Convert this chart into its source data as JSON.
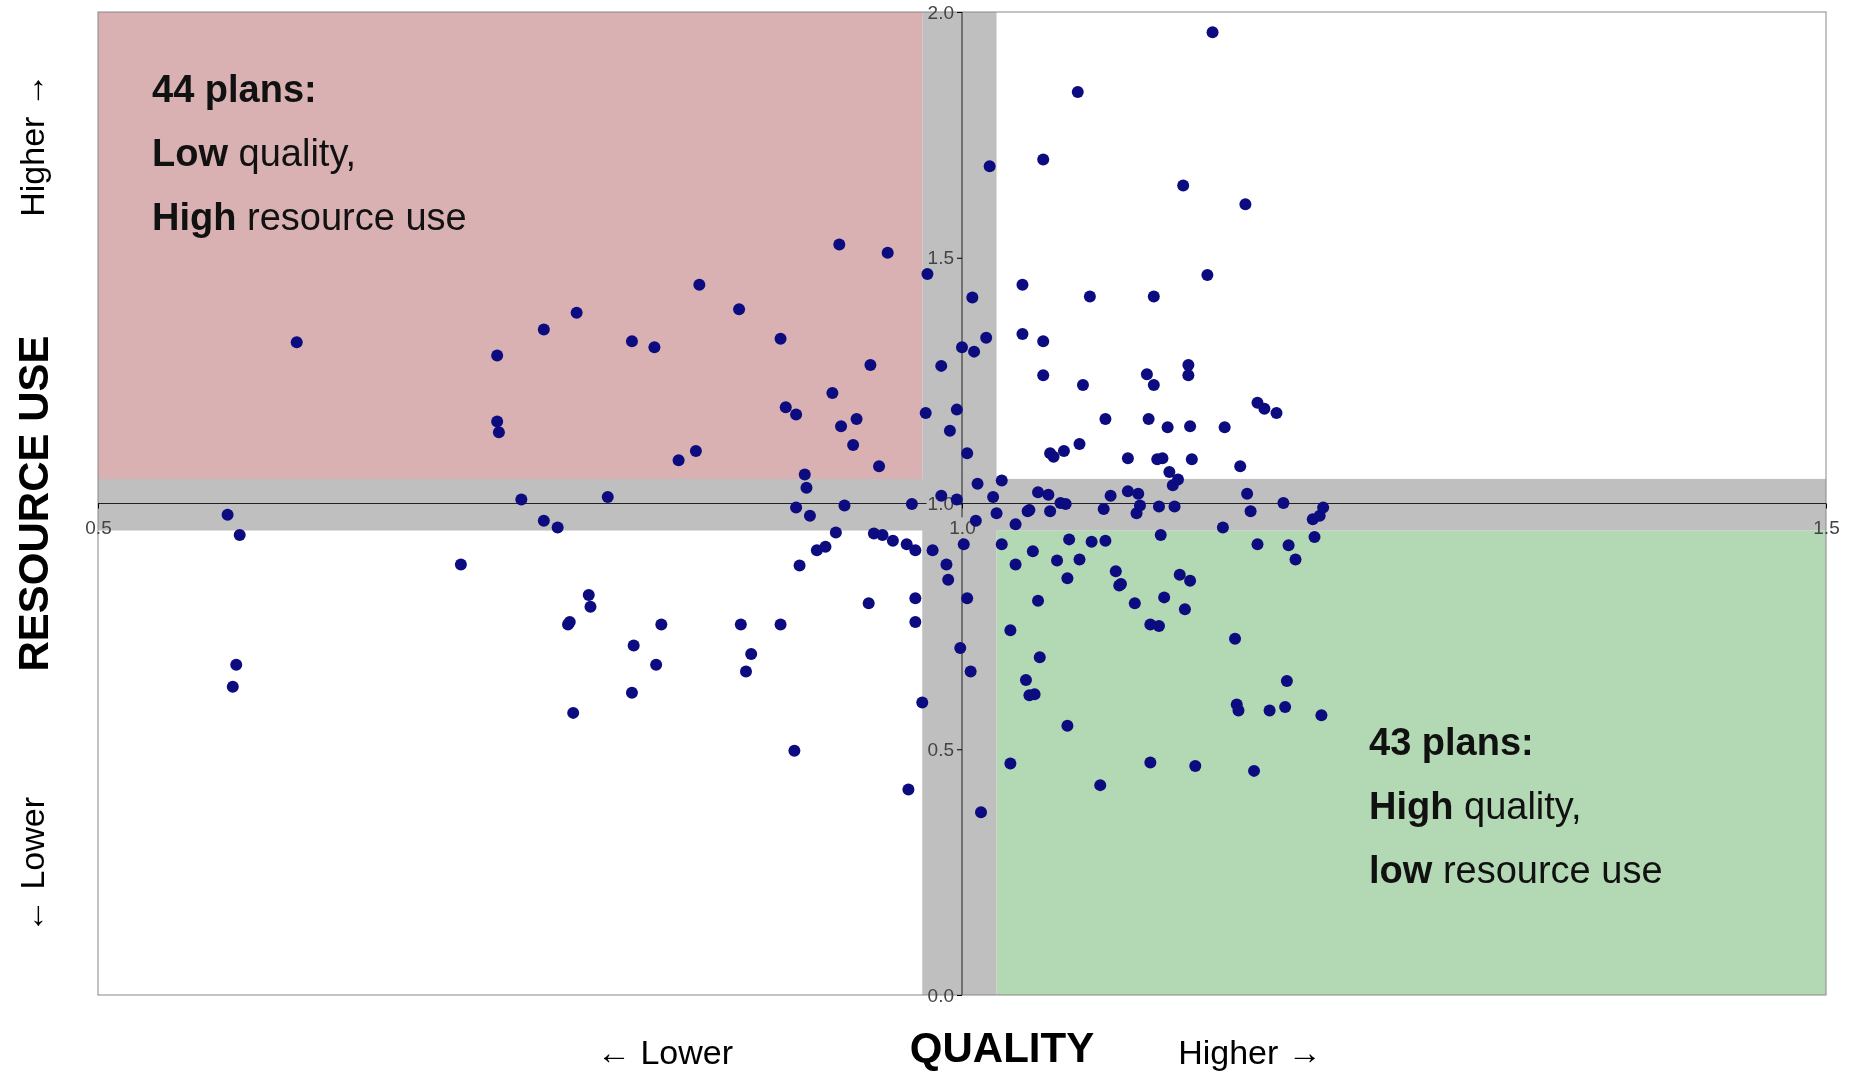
{
  "chart_data": {
    "type": "scatter",
    "xlabel": "QUALITY",
    "ylabel": "RESOURCE USE",
    "xlim": [
      0.5,
      1.5
    ],
    "ylim": [
      0,
      2
    ],
    "xticks": [
      {
        "value": 0.5,
        "label": "0.5"
      },
      {
        "value": 1,
        "label": "1.0"
      },
      {
        "value": 1.5,
        "label": "1.5"
      }
    ],
    "yticks": [
      {
        "value": 0,
        "label": "0.0"
      },
      {
        "value": 0.5,
        "label": "0.5"
      },
      {
        "value": 1,
        "label": "1.0"
      },
      {
        "value": 1.5,
        "label": "1.5"
      },
      {
        "value": 2,
        "label": "2.0"
      }
    ],
    "annotations": [
      "Higher →",
      "← Lower",
      "← Lower",
      "Higher →",
      "44 plans:\nLow quality,\nHigh resource use",
      "43 plans:\nHigh quality,\nlow resource use"
    ],
    "bands": [
      {
        "axis": "x",
        "from": 0.977,
        "to": 1.02,
        "color": "#bfbfbf"
      },
      {
        "axis": "y",
        "from": 0.945,
        "to": 1.05,
        "color": "#bfbfbf"
      }
    ],
    "series": [
      {
        "type": "area",
        "color": "#d9b1b3",
        "x": [
          0.5,
          0.977
        ],
        "values": [
          2,
          2
        ]
      },
      {
        "type": "area",
        "color": "#b2d9b3",
        "x": [
          1.02,
          1.5
        ],
        "values": [
          0.945,
          0.945
        ]
      },
      {
        "color": "#0c0c80",
        "marker": "circle",
        "x": [
          0.575,
          0.582,
          0.615,
          0.58,
          0.578,
          0.71,
          0.731,
          0.731,
          0.732,
          0.745,
          0.758,
          0.758,
          0.766,
          0.777,
          0.772,
          0.773,
          0.775,
          0.784,
          0.785,
          0.795,
          0.809,
          0.81,
          0.809,
          0.822,
          0.823,
          0.826,
          0.836,
          0.846,
          0.848,
          0.871,
          0.872,
          0.875,
          0.878,
          0.895,
          0.895,
          0.898,
          0.904,
          0.903,
          0.909,
          0.91,
          0.904,
          0.912,
          0.906,
          0.916,
          0.921,
          0.925,
          0.927,
          0.929,
          0.93,
          0.932,
          0.937,
          0.939,
          0.946,
          0.947,
          0.949,
          0.952,
          0.954,
          0.957,
          0.96,
          0.968,
          0.971,
          0.973,
          0.973,
          0.969,
          0.973,
          0.977,
          0.98,
          0.979,
          0.983,
          0.988,
          0.988,
          0.991,
          0.992,
          0.993,
          0.997,
          0.997,
          0.999,
          1.0,
          1.001,
          1.003,
          1.003,
          1.005,
          1.006,
          1.007,
          1.008,
          1.009,
          1.011,
          1.014,
          1.016,
          1.018,
          1.02,
          1.023,
          1.023,
          1.028,
          1.028,
          1.031,
          1.031,
          1.035,
          1.035,
          1.037,
          1.038,
          1.039,
          1.039,
          1.042,
          1.041,
          1.044,
          1.045,
          1.044,
          1.047,
          1.047,
          1.047,
          1.05,
          1.051,
          1.051,
          1.053,
          1.055,
          1.057,
          1.059,
          1.06,
          1.061,
          1.061,
          1.062,
          1.067,
          1.068,
          1.068,
          1.07,
          1.074,
          1.075,
          1.08,
          1.082,
          1.083,
          1.083,
          1.086,
          1.089,
          1.091,
          1.092,
          1.096,
          1.096,
          1.1,
          1.101,
          1.102,
          1.103,
          1.107,
          1.108,
          1.109,
          1.109,
          1.111,
          1.111,
          1.113,
          1.114,
          1.116,
          1.115,
          1.117,
          1.114,
          1.119,
          1.12,
          1.122,
          1.123,
          1.125,
          1.126,
          1.128,
          1.129,
          1.131,
          1.131,
          1.132,
          1.132,
          1.133,
          1.135,
          1.142,
          1.145,
          1.151,
          1.152,
          1.158,
          1.159,
          1.16,
          1.161,
          1.164,
          1.165,
          1.167,
          1.169,
          1.171,
          1.171,
          1.175,
          1.178,
          1.182,
          1.186,
          1.188,
          1.187,
          1.189,
          1.193,
          1.203,
          1.204,
          1.207,
          1.208,
          1.209
        ],
        "values": [
          0.977,
          0.936,
          1.328,
          0.672,
          0.627,
          0.876,
          1.301,
          1.167,
          1.145,
          1.008,
          1.354,
          0.965,
          0.951,
          1.388,
          0.754,
          0.759,
          0.574,
          0.814,
          0.79,
          1.013,
          1.33,
          0.711,
          0.615,
          1.318,
          0.672,
          0.754,
          1.088,
          1.107,
          1.445,
          1.395,
          0.754,
          0.658,
          0.694,
          1.335,
          0.754,
          1.196,
          1.181,
          0.497,
          1.059,
          1.032,
          0.992,
          0.975,
          0.874,
          0.905,
          0.912,
          1.225,
          0.941,
          1.527,
          1.157,
          0.996,
          1.119,
          1.172,
          0.797,
          1.282,
          0.939,
          1.076,
          0.936,
          1.51,
          0.924,
          0.917,
          0.999,
          0.807,
          0.759,
          0.418,
          0.905,
          0.595,
          1.467,
          1.184,
          0.905,
          1.28,
          1.016,
          0.876,
          0.845,
          1.148,
          1.191,
          1.008,
          0.706,
          1.318,
          0.917,
          1.102,
          0.807,
          0.658,
          1.419,
          1.309,
          0.965,
          1.04,
          0.372,
          1.337,
          1.686,
          1.013,
          0.98,
          1.047,
          0.917,
          0.742,
          0.471,
          0.958,
          0.876,
          1.445,
          1.345,
          0.641,
          0.984,
          0.61,
          0.987,
          0.612,
          0.903,
          1.023,
          0.687,
          0.802,
          1.33,
          1.7,
          1.261,
          1.018,
          1.102,
          0.984,
          1.095,
          0.884,
          1.001,
          1.107,
          0.999,
          0.848,
          0.548,
          0.927,
          1.837,
          1.121,
          0.886,
          1.241,
          1.421,
          0.922,
          0.427,
          0.989,
          1.172,
          0.924,
          1.016,
          0.862,
          0.833,
          0.836,
          1.025,
          1.092,
          0.797,
          0.98,
          1.02,
          0.996,
          1.263,
          1.172,
          0.754,
          0.473,
          1.421,
          1.241,
          1.09,
          0.994,
          1.092,
          0.936,
          0.809,
          0.751,
          1.155,
          1.064,
          1.037,
          0.994,
          1.049,
          0.855,
          1.647,
          0.785,
          1.282,
          1.261,
          1.157,
          0.843,
          1.09,
          0.466,
          1.465,
          1.959,
          0.951,
          1.155,
          0.725,
          0.591,
          0.579,
          1.076,
          1.609,
          1.02,
          0.984,
          0.456,
          0.917,
          1.205,
          1.193,
          0.579,
          1.184,
          1.001,
          0.639,
          0.586,
          0.915,
          0.886,
          0.968,
          0.932,
          0.975,
          0.569,
          0.992
        ]
      }
    ]
  }
}
